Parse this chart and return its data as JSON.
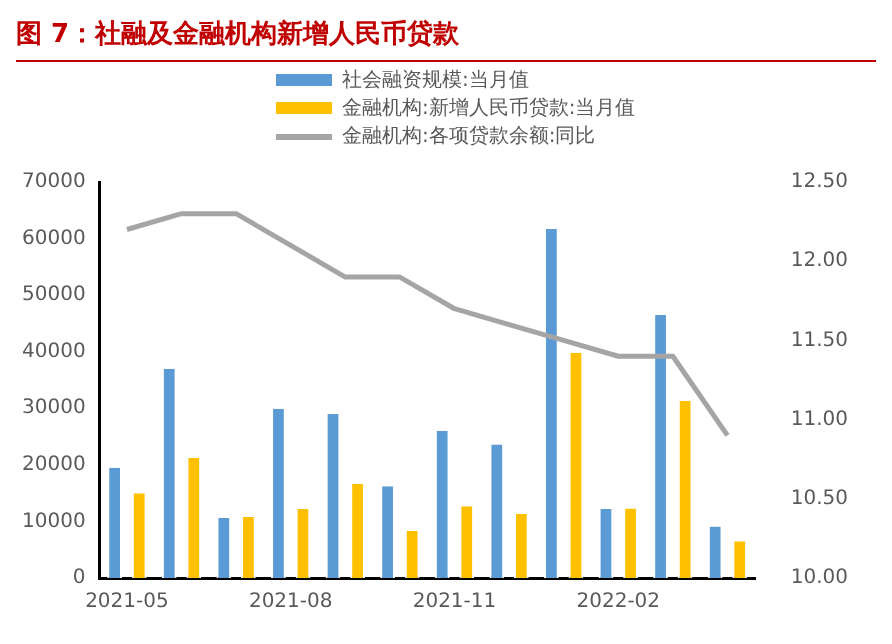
{
  "chart_data": {
    "type": "bar",
    "title": "图 7：社融及金融机构新增人民币贷款",
    "categories": [
      "2021-05",
      null,
      null,
      "2021-08",
      null,
      null,
      "2021-11",
      null,
      null,
      "2022-02",
      null,
      null
    ],
    "series": [
      {
        "name": "社会融资规模:当月值",
        "color": "#5b9bd5",
        "values": [
          19500,
          37000,
          10600,
          29900,
          29000,
          16200,
          26000,
          23600,
          61700,
          12200,
          46500,
          9100
        ]
      },
      {
        "name": "金融机构:新增人民币贷款:当月值",
        "color": "#ffc000",
        "values": [
          15000,
          21200,
          10800,
          12200,
          16600,
          8300,
          12700,
          11300,
          39800,
          12300,
          31300,
          6500
        ]
      },
      {
        "name": "金融机构:各项贷款余额:同比",
        "color": "#a5a5a5",
        "type": "line",
        "axis": "y2",
        "marker": "none",
        "values": [
          12.2,
          12.3,
          12.3,
          12.1,
          11.9,
          11.9,
          11.7,
          11.6,
          11.5,
          11.4,
          11.4,
          10.9
        ]
      }
    ],
    "ylim": [
      0,
      70000
    ],
    "yticks": [
      0,
      10000,
      20000,
      30000,
      40000,
      50000,
      60000,
      70000
    ],
    "y2lim": [
      10,
      12.5
    ],
    "y2ticks": [
      {
        "value": 10,
        "label": "10.00"
      },
      {
        "value": 10.5,
        "label": "10.50"
      },
      {
        "value": 11,
        "label": "11.00"
      },
      {
        "value": 11.5,
        "label": "11.50"
      },
      {
        "value": 12,
        "label": "12.00"
      },
      {
        "value": 12.5,
        "label": "12.50"
      }
    ],
    "grid": false,
    "legend": "top"
  }
}
